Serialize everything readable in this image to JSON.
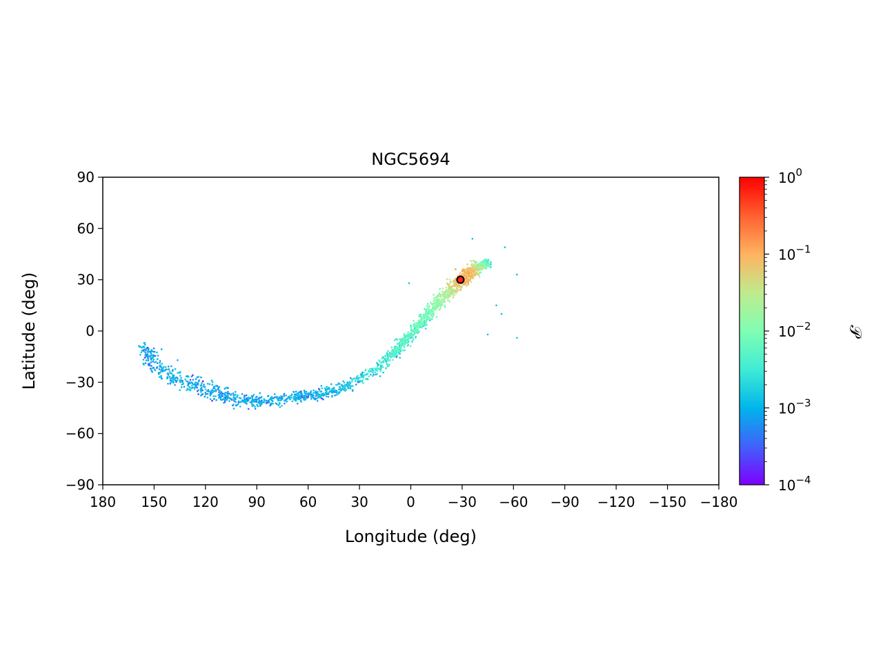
{
  "chart_data": {
    "type": "scatter",
    "title": "NGC5694",
    "xlabel": "Longitude (deg)",
    "ylabel": "Latitude (deg)",
    "xlim": [
      180,
      -180
    ],
    "ylim": [
      -90,
      90
    ],
    "x_ticks": [
      180,
      150,
      120,
      90,
      60,
      30,
      0,
      -30,
      -60,
      -90,
      -120,
      -150,
      -180
    ],
    "x_tick_labels": [
      "180",
      "150",
      "120",
      "90",
      "60",
      "30",
      "0",
      "−30",
      "−60",
      "−90",
      "−120",
      "−150",
      "−180"
    ],
    "y_ticks": [
      90,
      60,
      30,
      0,
      -30,
      -60,
      -90
    ],
    "y_tick_labels": [
      "90",
      "60",
      "30",
      "0",
      "−30",
      "−60",
      "−90"
    ],
    "grid": false,
    "colorbar": {
      "label": "𝒫",
      "scale": "log",
      "range": [
        0.0001,
        1
      ],
      "ticks": [
        {
          "value": 1,
          "base": "10",
          "exp": "0"
        },
        {
          "value": 0.1,
          "base": "10",
          "exp": "−1"
        },
        {
          "value": 0.01,
          "base": "10",
          "exp": "−2"
        },
        {
          "value": 0.001,
          "base": "10",
          "exp": "−3"
        },
        {
          "value": 0.0001,
          "base": "10",
          "exp": "−4"
        }
      ],
      "colormap": [
        "#7f00ff",
        "#4062fa",
        "#00b5eb",
        "#40ecd4",
        "#80feb3",
        "#c0eb8d",
        "#ffb360",
        "#ff6030",
        "#ff0000"
      ]
    },
    "stream_track": [
      {
        "lon": 157,
        "lat": -8,
        "spread": 3,
        "log_p": -2.85
      },
      {
        "lon": 150,
        "lat": -20,
        "spread": 5,
        "log_p": -2.85
      },
      {
        "lon": 140,
        "lat": -26,
        "spread": 5,
        "log_p": -2.8
      },
      {
        "lon": 130,
        "lat": -30,
        "spread": 5,
        "log_p": -2.8
      },
      {
        "lon": 120,
        "lat": -34,
        "spread": 5,
        "log_p": -2.8
      },
      {
        "lon": 110,
        "lat": -38,
        "spread": 4.5,
        "log_p": -2.85
      },
      {
        "lon": 100,
        "lat": -41,
        "spread": 4,
        "log_p": -2.85
      },
      {
        "lon": 90,
        "lat": -41,
        "spread": 4,
        "log_p": -2.85
      },
      {
        "lon": 80,
        "lat": -40,
        "spread": 3.5,
        "log_p": -2.85
      },
      {
        "lon": 70,
        "lat": -39,
        "spread": 3,
        "log_p": -2.8
      },
      {
        "lon": 60,
        "lat": -38,
        "spread": 3,
        "log_p": -2.8
      },
      {
        "lon": 50,
        "lat": -36,
        "spread": 3,
        "log_p": -2.8
      },
      {
        "lon": 40,
        "lat": -33,
        "spread": 3,
        "log_p": -2.7
      },
      {
        "lon": 30,
        "lat": -28,
        "spread": 2.5,
        "log_p": -2.5
      },
      {
        "lon": 20,
        "lat": -22,
        "spread": 2.5,
        "log_p": -2.3
      },
      {
        "lon": 10,
        "lat": -13,
        "spread": 2.5,
        "log_p": -2.2
      },
      {
        "lon": 0,
        "lat": -2,
        "spread": 2.5,
        "log_p": -2.1
      },
      {
        "lon": -10,
        "lat": 10,
        "spread": 3,
        "log_p": -1.9
      },
      {
        "lon": -20,
        "lat": 21,
        "spread": 3.5,
        "log_p": -1.5
      },
      {
        "lon": -30,
        "lat": 30,
        "spread": 4,
        "log_p": -0.8
      },
      {
        "lon": -36,
        "lat": 35,
        "spread": 3.5,
        "log_p": -1.0
      },
      {
        "lon": -45,
        "lat": 40,
        "spread": 2.5,
        "log_p": -2.3
      }
    ],
    "sample_count": 2800,
    "outlier_points": [
      {
        "lon": -55,
        "lat": 49
      },
      {
        "lon": -62,
        "lat": 33
      },
      {
        "lon": -62,
        "lat": -4
      },
      {
        "lon": -53,
        "lat": 10
      },
      {
        "lon": -45,
        "lat": -2
      },
      {
        "lon": -36,
        "lat": 54
      },
      {
        "lon": -50,
        "lat": 15
      },
      {
        "lon": 1,
        "lat": 28
      }
    ],
    "cluster_position": {
      "lon": -29,
      "lat": 30,
      "color": "#ff2020"
    }
  }
}
